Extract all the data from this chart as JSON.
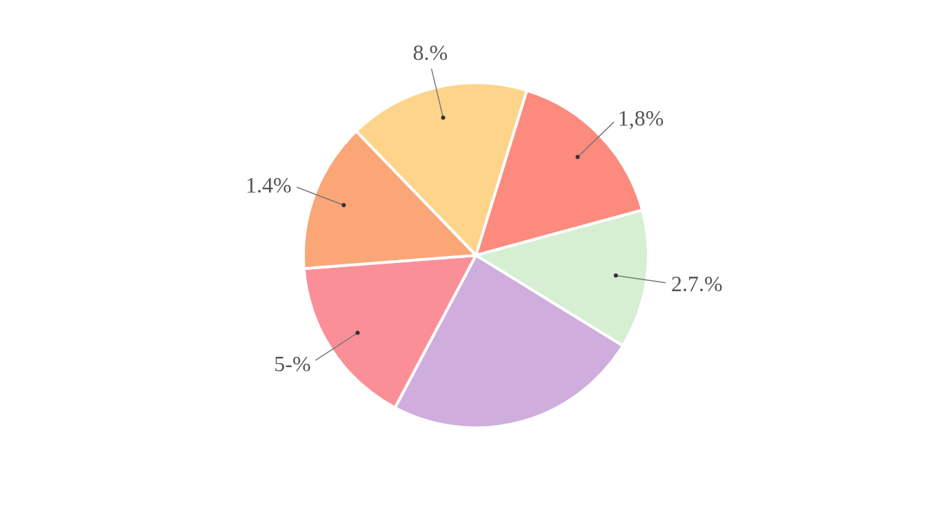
{
  "chart_data": {
    "type": "pie",
    "categories": [
      null,
      null,
      null,
      null,
      null,
      null
    ],
    "values": [
      17,
      16,
      13,
      24,
      16,
      14
    ],
    "colors": [
      "#fdd48a",
      "#fc8a7d",
      "#d6efd2",
      "#cfaedd",
      "#fb8f98",
      "#fba677"
    ],
    "annotations": [
      "8.%",
      "1,8%",
      "2.7.%",
      "5-%",
      "1.4%"
    ]
  }
}
